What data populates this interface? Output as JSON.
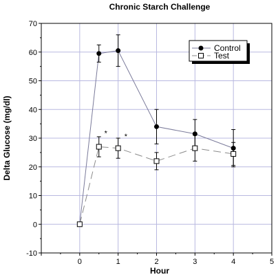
{
  "chart_data": {
    "type": "line",
    "title": "Chronic Starch Challenge",
    "xlabel": "Hour",
    "ylabel": "Delta Glucose (mg/dl)",
    "xlim": [
      -1,
      5
    ],
    "ylim": [
      -10,
      70
    ],
    "xticks": [
      -1,
      0,
      1,
      2,
      3,
      4,
      5
    ],
    "xtick_labels": [
      "",
      "0",
      "1",
      "2",
      "3",
      "4",
      "5"
    ],
    "yticks": [
      -10,
      0,
      10,
      20,
      30,
      40,
      50,
      60,
      70
    ],
    "yticks_labels": [
      "-10",
      "0",
      "10",
      "20",
      "30",
      "40",
      "50",
      "60",
      "70"
    ],
    "grid": true,
    "legend_position": "top-right",
    "series": [
      {
        "name": "Control",
        "marker": "filled-circle",
        "line_style": "solid",
        "color": "#000000",
        "line_color": "#7a7a9a",
        "x": [
          0,
          0.5,
          1,
          2,
          3,
          4
        ],
        "y": [
          0,
          59.5,
          60.5,
          34,
          31.5,
          26.5
        ],
        "err": [
          0,
          3,
          5.5,
          6,
          5,
          6.5
        ]
      },
      {
        "name": "Test",
        "marker": "open-square",
        "line_style": "dashed",
        "color": "#000000",
        "line_color": "#8a8a8a",
        "x": [
          0,
          0.5,
          1,
          2,
          3,
          4
        ],
        "y": [
          0,
          27,
          26.5,
          22,
          26.5,
          24.5
        ],
        "err": [
          0,
          3.5,
          3.5,
          3,
          4.5,
          4
        ]
      }
    ],
    "annotations": [
      {
        "text": "*",
        "x": 0.68,
        "y": 30.8
      },
      {
        "text": "*",
        "x": 1.2,
        "y": 29.8
      }
    ]
  }
}
